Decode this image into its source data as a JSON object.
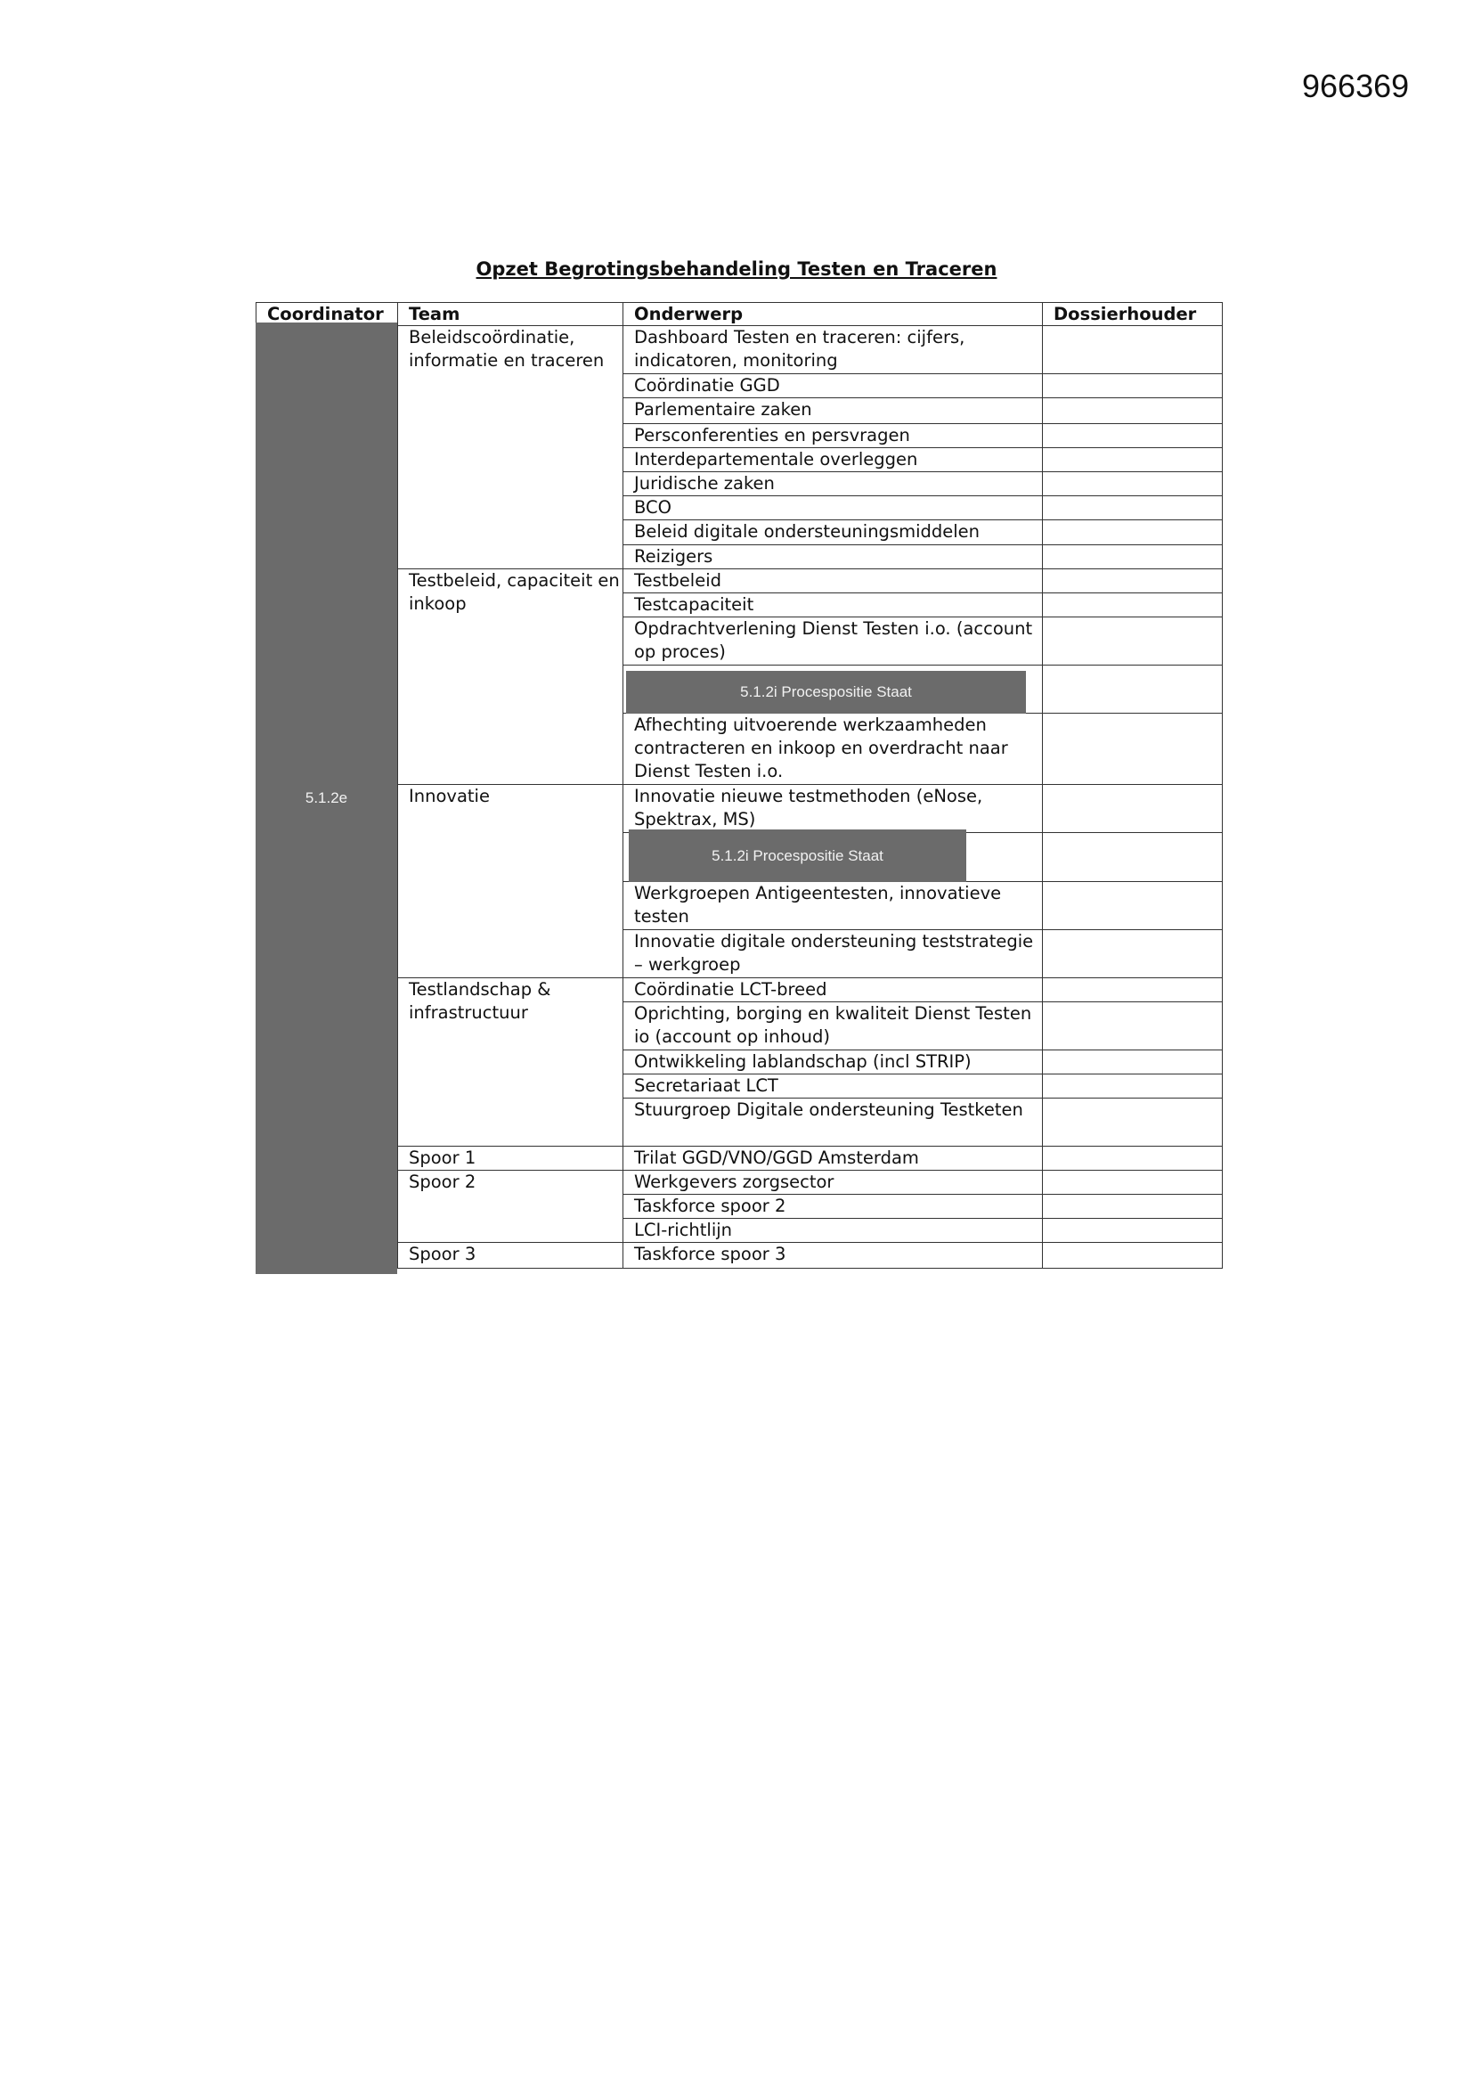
{
  "document_number": "966369",
  "title": "Opzet Begrotingsbehandeling Testen en Traceren",
  "headers": [
    "Coordinator",
    "Team",
    "Onderwerp",
    "Dossierhouder"
  ],
  "coordinator_redaction": "5.1.2e",
  "redaction_label": "5.1.2i Procespositie Staat",
  "redaction_color": "#6b6b6b",
  "teams": [
    {
      "name": "Beleidscoördinatie, informatie en traceren",
      "items": [
        "Dashboard Testen en traceren: cijfers, indicatoren, monitoring",
        "Coördinatie GGD",
        "Parlementaire zaken",
        "Persconferenties en persvragen",
        "Interdepartementale overleggen",
        "Juridische zaken",
        "BCO",
        "Beleid digitale ondersteuningsmiddelen",
        "Reizigers"
      ]
    },
    {
      "name": "Testbeleid, capaciteit en inkoop",
      "items": [
        "Testbeleid",
        "Testcapaciteit",
        "Opdrachtverlening Dienst Testen i.o. (account op proces)",
        "",
        "Afhechting uitvoerende werkzaamheden contracteren en inkoop en overdracht naar Dienst Testen i.o."
      ]
    },
    {
      "name": "Innovatie",
      "items": [
        "Innovatie nieuwe testmethoden (eNose, Spektrax, MS)",
        "",
        "Werkgroepen Antigeentesten, innovatieve testen",
        "Innovatie digitale ondersteuning teststrategie – werkgroep"
      ]
    },
    {
      "name": "Testlandschap & infrastructuur",
      "items": [
        "Coördinatie LCT-breed",
        "Oprichting, borging en kwaliteit  Dienst Testen io (account op inhoud)",
        "Ontwikkeling lablandschap (incl STRIP)",
        "Secretariaat LCT",
        "Stuurgroep Digitale ondersteuning Testketen"
      ]
    },
    {
      "name": "Spoor 1",
      "items": [
        "Trilat GGD/VNO/GGD Amsterdam"
      ]
    },
    {
      "name": "Spoor 2",
      "items": [
        "Werkgevers zorgsector",
        "Taskforce spoor 2",
        "LCI-richtlijn"
      ]
    },
    {
      "name": "Spoor 3",
      "items": [
        "Taskforce spoor 3"
      ]
    }
  ]
}
